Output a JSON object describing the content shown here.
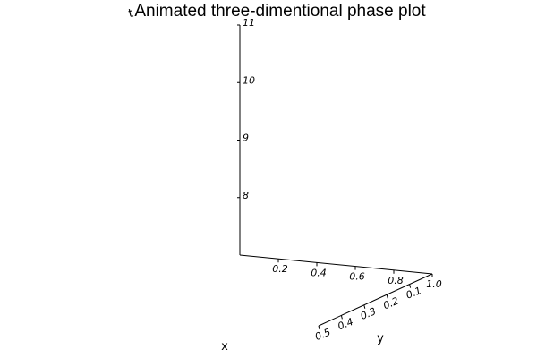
{
  "chart_data": {
    "type": "line",
    "title": "Animated three-dimentional phase plot",
    "xlabel": "x",
    "ylabel": "y",
    "zlabel": "t",
    "xlim": [
      0.0,
      1.0
    ],
    "ylim": [
      0.0,
      0.5
    ],
    "zlim": [
      7,
      11
    ],
    "x_ticks": [
      "0.2",
      "0.4",
      "0.6",
      "0.8",
      "1.0"
    ],
    "y_ticks": [
      "0.5",
      "0.4",
      "0.3",
      "0.2",
      "0.1"
    ],
    "z_ticks": [
      "8",
      "9",
      "10",
      "11"
    ],
    "grid": false,
    "series": []
  }
}
